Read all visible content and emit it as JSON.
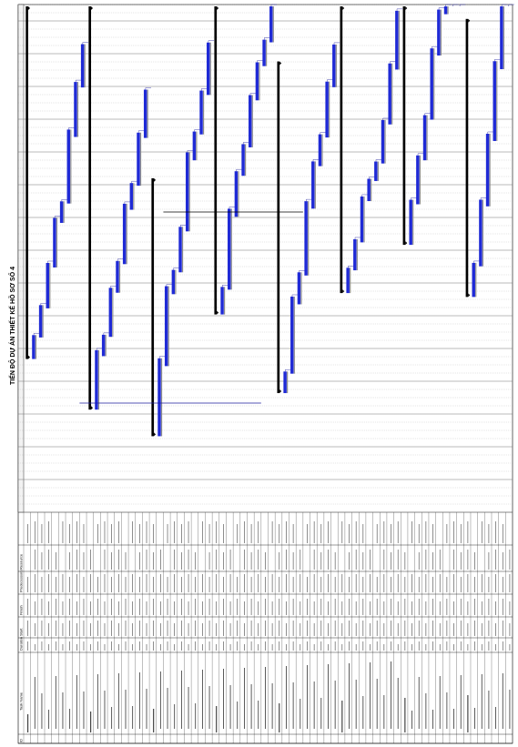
{
  "document": {
    "title": "TIẾN ĐỘ DỰ ÁN THIẾT KẾ HỒ SƠ SỐ 4"
  },
  "table": {
    "headers": [
      "ID",
      "Task Name",
      "Duration",
      "Start",
      "Finish",
      "Predecessors",
      "Resource"
    ],
    "row_count": 70
  },
  "colors": {
    "task_bar": "#1f2ad6",
    "summary_bar": "#000000",
    "baseline_bar": "#8a8a8a",
    "grid": "#9a9a9a",
    "dependency_line": "#1b1b9e"
  }
}
